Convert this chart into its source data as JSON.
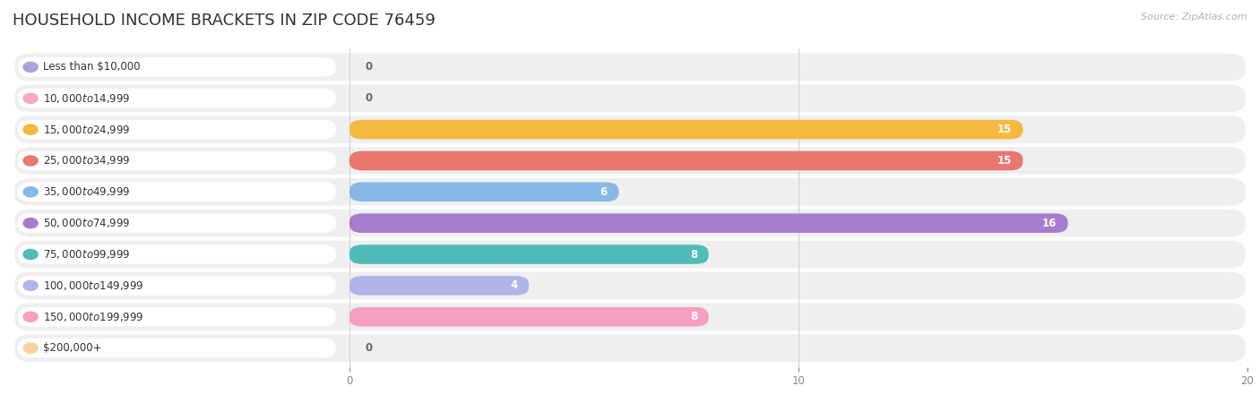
{
  "title": "HOUSEHOLD INCOME BRACKETS IN ZIP CODE 76459",
  "source": "Source: ZipAtlas.com",
  "categories": [
    "Less than $10,000",
    "$10,000 to $14,999",
    "$15,000 to $24,999",
    "$25,000 to $34,999",
    "$35,000 to $49,999",
    "$50,000 to $74,999",
    "$75,000 to $99,999",
    "$100,000 to $149,999",
    "$150,000 to $199,999",
    "$200,000+"
  ],
  "values": [
    0,
    0,
    15,
    15,
    6,
    16,
    8,
    4,
    8,
    0
  ],
  "bar_colors": [
    "#a8a4d4",
    "#f7a8c4",
    "#f5b840",
    "#e87870",
    "#88b8e8",
    "#a87ccc",
    "#50bcb8",
    "#b0b4e8",
    "#f5a0c0",
    "#f5d4a0"
  ],
  "xlim": [
    0,
    20
  ],
  "plot_bg_color": "#ffffff",
  "row_bg_color": "#efefef",
  "title_fontsize": 13,
  "label_fontsize": 8.5,
  "value_fontsize": 8.5,
  "bar_height": 0.62
}
